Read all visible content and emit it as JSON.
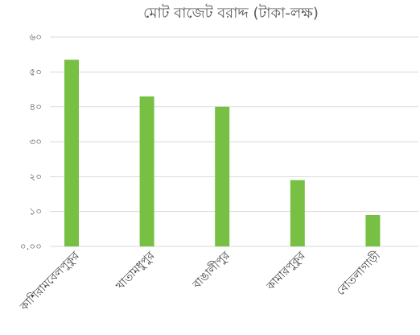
{
  "chart_data": {
    "type": "bar",
    "title": "মোট বাজেট বরাদ্দ (টাকা-লক্ষ)",
    "categories": [
      "কাশিরামবেলপুকুর",
      "খাতামধুপুর",
      "বাঙালীপুর",
      "কামারপুকুর",
      "বোতলাগাড়ী"
    ],
    "values": [
      53.5,
      43,
      40,
      19,
      9
    ],
    "ylim": [
      0,
      60
    ],
    "yticks": [
      0,
      10,
      20,
      30,
      40,
      50,
      60
    ],
    "ytick_labels": [
      "০.০০",
      "১০",
      "২০",
      "৩০",
      "৪০",
      "৫০",
      "৬০"
    ],
    "xlabel": "",
    "ylabel": "",
    "grid": true,
    "legend": "none",
    "bar_color": "#77c043",
    "grid_color": "#d9d9d9"
  }
}
